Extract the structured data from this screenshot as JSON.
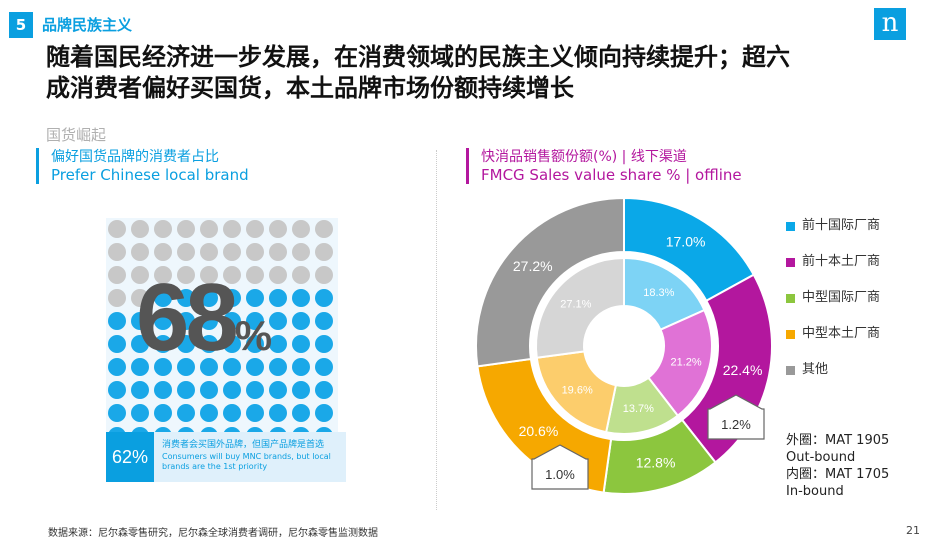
{
  "header": {
    "section_number": "5",
    "section_title": "品牌民族主义",
    "logo_text": "n",
    "headline_line1": "随着国民经济进一步发展，在消费领域的民族主义倾向持续提升；超六",
    "headline_line2": "成消费者偏好买国货，本土品牌市场份额持续增长",
    "subsection": "国货崛起"
  },
  "left": {
    "title_cn": "偏好国货品牌的消费者占比",
    "title_en": "Prefer Chinese local brand",
    "big_value": "68",
    "big_unit": "%",
    "dot_colors": {
      "filled": "#1aa8e8",
      "empty": "#c8c8c8"
    },
    "info_value": "62%",
    "info_cn": "消费者会买国外品牌，但国产品牌是首选",
    "info_en": "Consumers will buy MNC brands, but local brands are the 1st priority"
  },
  "right": {
    "title_cn": "快消品销售额份额(%) | 线下渠道",
    "title_en": "FMCG Sales value share % | offline",
    "note_line1": "外圈：MAT 1905",
    "note_line2": "Out-bound",
    "note_line3": "内圈：MAT 1705",
    "note_line4": "In-bound",
    "arrow_right_label": "1.2%",
    "arrow_left_label": "1.0%"
  },
  "chart_data": {
    "type": "donut",
    "categories": [
      "前十国际厂商",
      "前十本土厂商",
      "中型国际厂商",
      "中型本土厂商",
      "其他"
    ],
    "colors": [
      "#0aa8e8",
      "#b3179e",
      "#8cc63e",
      "#f6a800",
      "#999999"
    ],
    "inner_colors": [
      "#7dd3f5",
      "#e072d6",
      "#bfe08e",
      "#fccd6c",
      "#d6d6d6"
    ],
    "series": [
      {
        "name": "外圈：MAT 1905",
        "values": [
          17.0,
          22.4,
          12.8,
          20.6,
          27.2
        ],
        "labels": [
          "17.0%",
          "22.4%",
          "12.8%",
          "20.6%",
          "27.2%"
        ]
      },
      {
        "name": "内圈：MAT 1705",
        "values": [
          18.3,
          21.2,
          13.7,
          19.6,
          27.1
        ],
        "labels": [
          "18.3%",
          "21.2%",
          "13.7%",
          "19.6%",
          "27.1%"
        ]
      }
    ]
  },
  "footer": {
    "source": "数据来源：尼尔森零售研究，尼尔森全球消费者调研，尼尔森零售监测数据",
    "page_number": "21"
  }
}
